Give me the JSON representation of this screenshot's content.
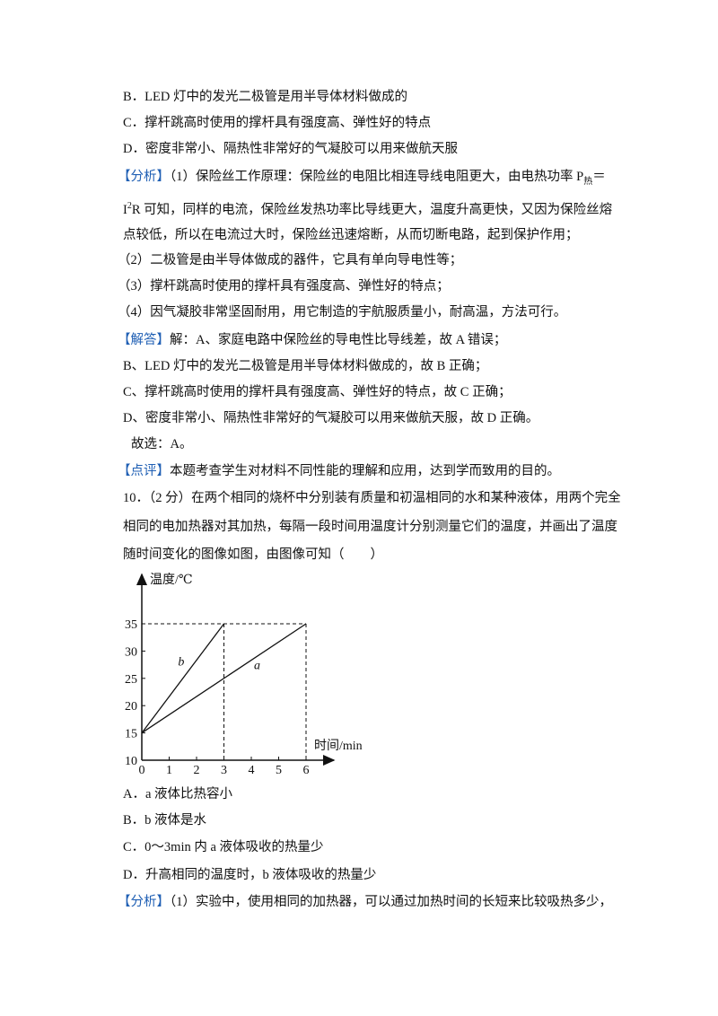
{
  "document": {
    "options_prev": [
      "B．LED 灯中的发光二极管是用半导体材料做成的",
      "C．撑杆跳高时使用的撑杆具有强度高、弹性好的特点",
      "D．密度非常小、隔热性非常好的气凝胶可以用来做航天服"
    ],
    "analysis": {
      "label": "【分析】",
      "line1": "（1）保险丝工作原理：保险丝的电阻比相连导线电阻更大，由电热功率 P",
      "line1_sub": "热",
      "line1_end": "＝",
      "line2_start": "I",
      "line2_sup": "2",
      "line2": "R 可知，同样的电流，保险丝发热功率比导线更大，温度升高更快，又因为保险丝熔",
      "lines": [
        "点较低，所以在电流过大时，保险丝迅速熔断，从而切断电路，起到保护作用；",
        "（2）二极管是由半导体做成的器件，它具有单向导电性等；",
        "（3）撑杆跳高时使用的撑杆具有强度高、弹性好的特点；",
        "（4）因气凝胶非常坚固耐用，用它制造的宇航服质量小，耐高温，方法可行。"
      ]
    },
    "answer": {
      "label": "【解答】",
      "lines": [
        "解：A、家庭电路中保险丝的导电性比导线差，故 A 错误；",
        "B、LED 灯中的发光二极管是用半导体材料做成的，故 B 正确；",
        "C、撑杆跳高时使用的撑杆具有强度高、弹性好的特点，故 C 正确；",
        "D、密度非常小、隔热性非常好的气凝胶可以用来做航天服，故 D 正确。",
        "故选：A。"
      ]
    },
    "comment": {
      "label": "【点评】",
      "text": "本题考查学生对材料不同性能的理解和应用，达到学而致用的目的。"
    },
    "question": {
      "lines": [
        "10．（2 分）在两个相同的烧杯中分别装有质量和初温相同的水和某种液体，用两个完全",
        "相同的电加热器对其加热，每隔一段时间用温度计分别测量它们的温度，并画出了温度",
        "随时间变化的图像如图，由图像可知（　　）"
      ],
      "options": [
        "A．a 液体比热容小",
        "B．b 液体是水",
        "C．0～3min 内 a 液体吸收的热量少",
        "D．升高相同的温度时，b 液体吸收的热量少"
      ]
    },
    "analysis2": {
      "label": "【分析】",
      "text": "（1）实验中，使用相同的加热器，可以通过加热时间的长短来比较吸热多少，"
    }
  },
  "chart_data": {
    "type": "line",
    "x_label": "时间/min",
    "y_label": "温度/℃",
    "series": [
      {
        "name": "a",
        "color": "#111111",
        "x": [
          0,
          6
        ],
        "values": [
          15,
          35
        ]
      },
      {
        "name": "b",
        "color": "#111111",
        "x": [
          0,
          3
        ],
        "values": [
          15,
          35
        ]
      }
    ],
    "xlim": [
      0,
      6.8
    ],
    "ylim": [
      10,
      43
    ],
    "xticks": [
      0,
      1,
      2,
      3,
      4,
      5,
      6
    ],
    "yticks": [
      10,
      15,
      20,
      25,
      30,
      35
    ]
  }
}
